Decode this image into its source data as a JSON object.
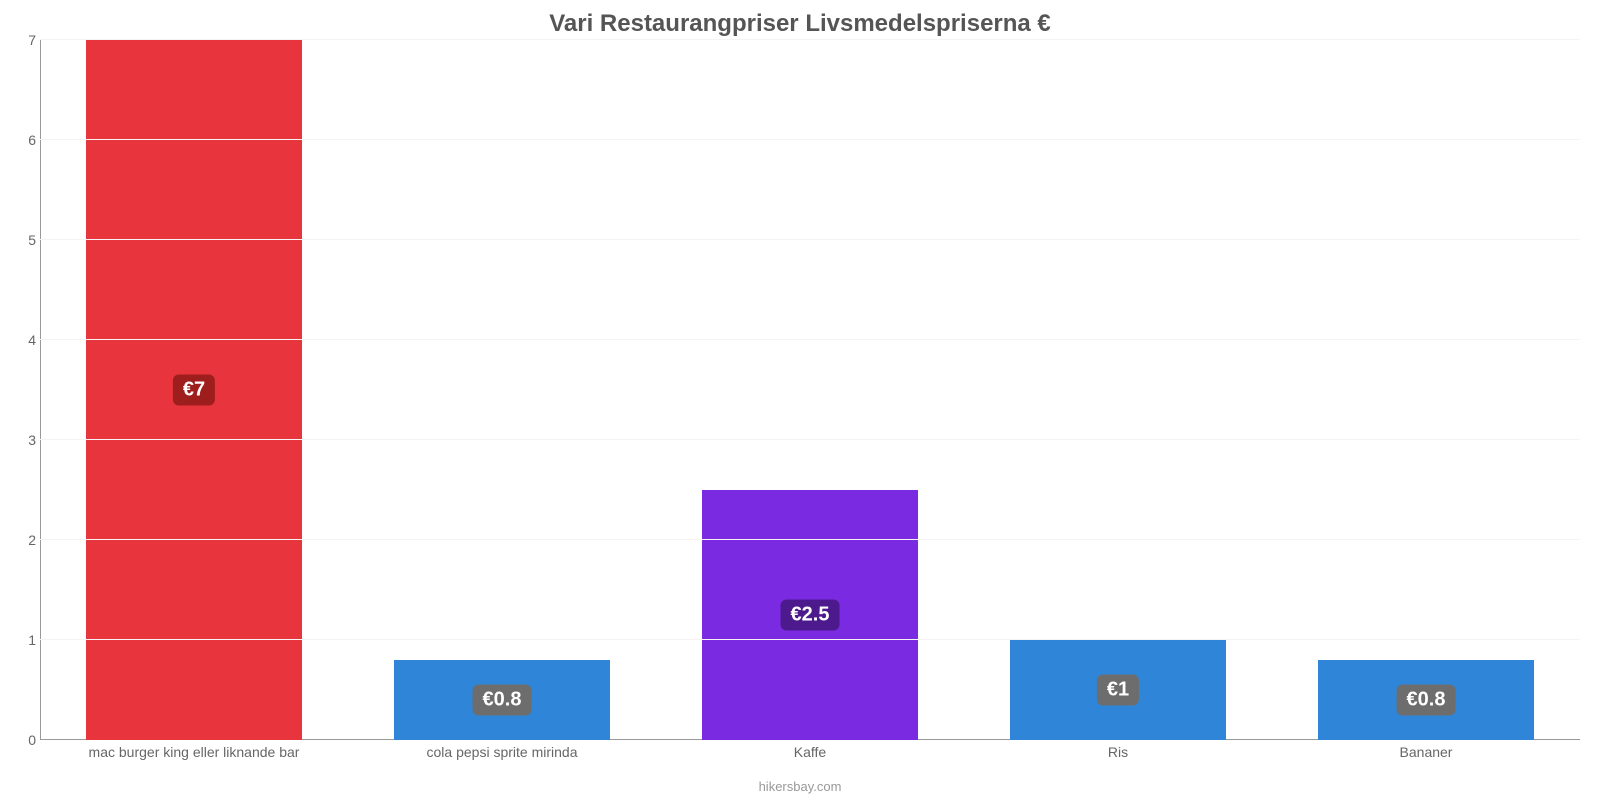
{
  "chart": {
    "type": "bar",
    "title": "Vari Restaurangpriser Livsmedelspriserna €",
    "title_fontsize": 24,
    "title_color": "#555555",
    "caption": "hikersbay.com",
    "background_color": "#ffffff",
    "grid_color": "#f7f3f3",
    "axis_color": "#999999",
    "ylim": [
      0,
      7
    ],
    "yticks": [
      0,
      1,
      2,
      3,
      4,
      5,
      6,
      7
    ],
    "bar_width_pct": 70,
    "label_fontsize": 20,
    "xlabel_fontsize": 14,
    "xlabel_color": "#666666",
    "categories": [
      "mac burger king eller liknande bar",
      "cola pepsi sprite mirinda",
      "Kaffe",
      "Ris",
      "Bananer"
    ],
    "values": [
      7,
      0.8,
      2.5,
      1,
      0.8
    ],
    "value_labels": [
      "€7",
      "€0.8",
      "€2.5",
      "€1",
      "€0.8"
    ],
    "bar_colors": [
      "#e8343c",
      "#2f86d9",
      "#7a2ae0",
      "#2f86d9",
      "#2f86d9"
    ],
    "label_bg_colors": [
      "#9e1e1e",
      "#6d6d6d",
      "#4d1a8e",
      "#6d6d6d",
      "#6d6d6d"
    ]
  }
}
